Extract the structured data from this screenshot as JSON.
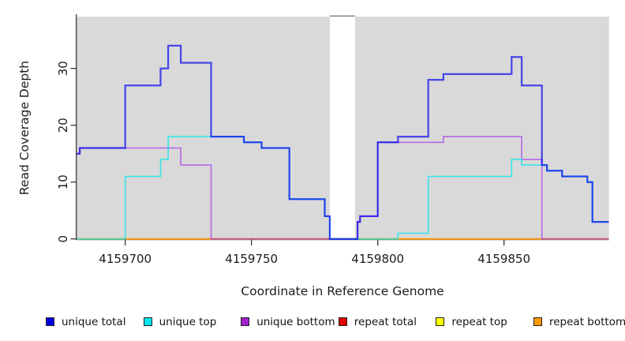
{
  "figure_title": "",
  "chart_data": {
    "type": "line",
    "step": true,
    "title": "",
    "xlabel": "Coordinate in Reference Genome",
    "ylabel": "Read Coverage Depth",
    "xlim": [
      4159680.8,
      4159891.5
    ],
    "ylim": [
      0,
      38.5
    ],
    "x_ticks": [
      4159700,
      4159750,
      4159800,
      4159850
    ],
    "y_ticks": [
      0,
      10,
      20,
      30
    ],
    "grid": false,
    "plot_background": "#d9d9d9",
    "no_data_region": [
      4159781,
      4159791
    ],
    "legend_position": "bottom",
    "series": [
      {
        "name": "repeat total",
        "color": "#dd0000",
        "opacity": 0.85,
        "width": 1.4,
        "points": [
          [
            4159680.8,
            0
          ]
        ]
      },
      {
        "name": "repeat top",
        "color": "#ffff00",
        "opacity": 0.9,
        "width": 1.4,
        "points": [
          [
            4159680.8,
            0
          ]
        ]
      },
      {
        "name": "repeat bottom",
        "color": "#ff9800",
        "opacity": 1.0,
        "width": 1.8,
        "points": [
          [
            4159680.8,
            0
          ]
        ]
      },
      {
        "name": "unique bottom",
        "color": "#a020f0",
        "opacity": 0.62,
        "width": 1.6,
        "points": [
          [
            4159680.8,
            15
          ],
          [
            4159682,
            16
          ],
          [
            4159722,
            13
          ],
          [
            4159734,
            0
          ],
          [
            4159792,
            3
          ],
          [
            4159793,
            4
          ],
          [
            4159800,
            17
          ],
          [
            4159826,
            18
          ],
          [
            4159857,
            14
          ],
          [
            4159865,
            0
          ]
        ]
      },
      {
        "name": "unique top",
        "color": "#00e5ee",
        "opacity": 0.75,
        "width": 1.6,
        "points": [
          [
            4159680.8,
            0
          ],
          [
            4159700,
            11
          ],
          [
            4159714,
            14
          ],
          [
            4159717,
            18
          ],
          [
            4159747,
            17
          ],
          [
            4159754,
            16
          ],
          [
            4159765,
            7
          ],
          [
            4159779,
            4
          ],
          [
            4159781,
            0
          ],
          [
            4159808,
            1
          ],
          [
            4159820,
            11
          ],
          [
            4159853,
            14
          ],
          [
            4159857,
            13
          ],
          [
            4159867,
            12
          ],
          [
            4159873,
            11
          ],
          [
            4159883,
            10
          ],
          [
            4159885,
            3
          ]
        ]
      },
      {
        "name": "unique total",
        "color": "#0000ee",
        "opacity": 0.68,
        "width": 2.25,
        "points": [
          [
            4159680.8,
            15
          ],
          [
            4159682,
            16
          ],
          [
            4159700,
            27
          ],
          [
            4159714,
            30
          ],
          [
            4159717,
            34
          ],
          [
            4159722,
            31
          ],
          [
            4159734,
            18
          ],
          [
            4159747,
            17
          ],
          [
            4159754,
            16
          ],
          [
            4159765,
            7
          ],
          [
            4159779,
            4
          ],
          [
            4159781,
            0
          ],
          [
            4159792,
            3
          ],
          [
            4159793,
            4
          ],
          [
            4159800,
            17
          ],
          [
            4159808,
            18
          ],
          [
            4159820,
            28
          ],
          [
            4159826,
            29
          ],
          [
            4159853,
            32
          ],
          [
            4159857,
            27
          ],
          [
            4159865,
            13
          ],
          [
            4159867,
            12
          ],
          [
            4159873,
            11
          ],
          [
            4159883,
            10
          ],
          [
            4159885,
            3
          ]
        ]
      }
    ]
  },
  "legend": {
    "items": [
      {
        "label": "unique total",
        "color": "#0000e0"
      },
      {
        "label": "unique top",
        "color": "#00e5ee"
      },
      {
        "label": "unique bottom",
        "color": "#a020d0"
      },
      {
        "label": "repeat total",
        "color": "#e60000"
      },
      {
        "label": "repeat top",
        "color": "#ffff00"
      },
      {
        "label": "repeat bottom",
        "color": "#ff9800"
      }
    ]
  }
}
